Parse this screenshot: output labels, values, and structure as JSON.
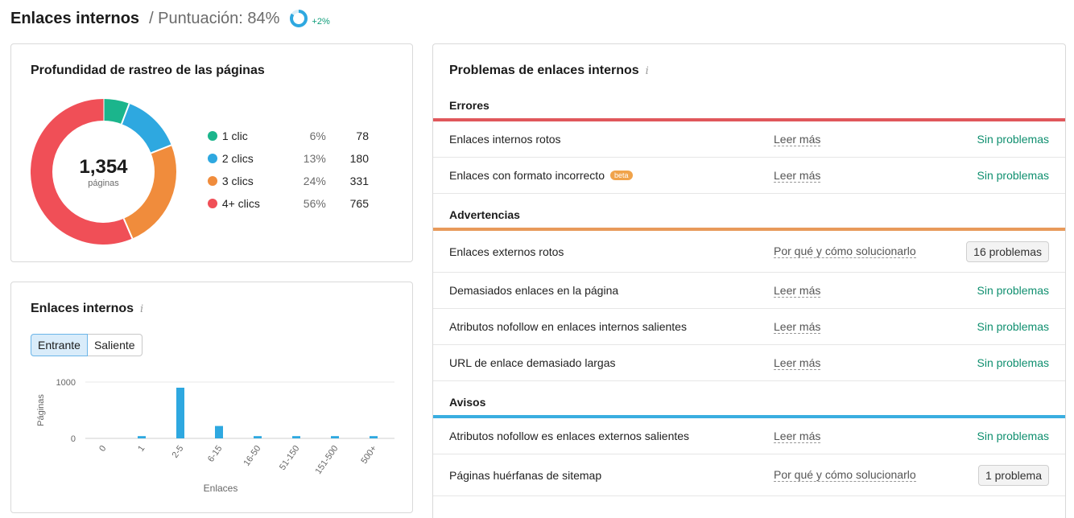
{
  "header": {
    "title": "Enlaces internos",
    "score_label": "/ Puntuación: 84%",
    "score_value": 84,
    "score_delta": "+2%",
    "ring_color": "#2ea8e0"
  },
  "depth_card": {
    "title": "Profundidad de rastreo de las páginas",
    "total": "1,354",
    "total_label": "páginas",
    "legend": [
      {
        "label": "1 clic",
        "pct": "6%",
        "count": "78",
        "color": "#1bb58c"
      },
      {
        "label": "2 clics",
        "pct": "13%",
        "count": "180",
        "color": "#2ea8e0"
      },
      {
        "label": "3 clics",
        "pct": "24%",
        "count": "331",
        "color": "#f08c3c"
      },
      {
        "label": "4+ clics",
        "pct": "56%",
        "count": "765",
        "color": "#f04f57"
      }
    ]
  },
  "links_card": {
    "title": "Enlaces internos",
    "info_icon": "i",
    "toggle": {
      "incoming": "Entrante",
      "outgoing": "Saliente"
    },
    "chart_data": {
      "type": "bar",
      "categories": [
        "0",
        "1",
        "2-5",
        "6-15",
        "16-50",
        "51-150",
        "151-500",
        "500+"
      ],
      "values": [
        0,
        40,
        900,
        220,
        40,
        40,
        40,
        40
      ],
      "xlabel": "Enlaces",
      "ylabel": "Páginas",
      "ylim": [
        0,
        1000
      ],
      "yticks": [
        "0",
        "1000"
      ],
      "color": "#2ea8e0"
    }
  },
  "problems_card": {
    "title": "Problemas de enlaces internos",
    "info_icon": "i",
    "sections": [
      {
        "title": "Errores",
        "color": "#e0575b",
        "rows": [
          {
            "name": "Enlaces internos rotos",
            "link": "Leer más",
            "status": "Sin problemas",
            "badge": null,
            "beta": null
          },
          {
            "name": "Enlaces con formato incorrecto",
            "link": "Leer más",
            "status": "Sin problemas",
            "badge": null,
            "beta": "beta"
          }
        ]
      },
      {
        "title": "Advertencias",
        "color": "#e89a5a",
        "rows": [
          {
            "name": "Enlaces externos rotos",
            "link": "Por qué y cómo solucionarlo",
            "status": null,
            "badge": "16 problemas",
            "beta": null
          },
          {
            "name": "Demasiados enlaces en la página",
            "link": "Leer más",
            "status": "Sin problemas",
            "badge": null,
            "beta": null
          },
          {
            "name": "Atributos nofollow en enlaces internos salientes",
            "link": "Leer más",
            "status": "Sin problemas",
            "badge": null,
            "beta": null
          },
          {
            "name": "URL de enlace demasiado largas",
            "link": "Leer más",
            "status": "Sin problemas",
            "badge": null,
            "beta": null
          }
        ]
      },
      {
        "title": "Avisos",
        "color": "#3aaee0",
        "rows": [
          {
            "name": "Atributos nofollow es enlaces externos salientes",
            "link": "Leer más",
            "status": "Sin problemas",
            "badge": null,
            "beta": null
          },
          {
            "name": "Páginas huérfanas de sitemap",
            "link": "Por qué y cómo solucionarlo",
            "status": null,
            "badge": "1 problema",
            "beta": null
          }
        ]
      }
    ]
  }
}
